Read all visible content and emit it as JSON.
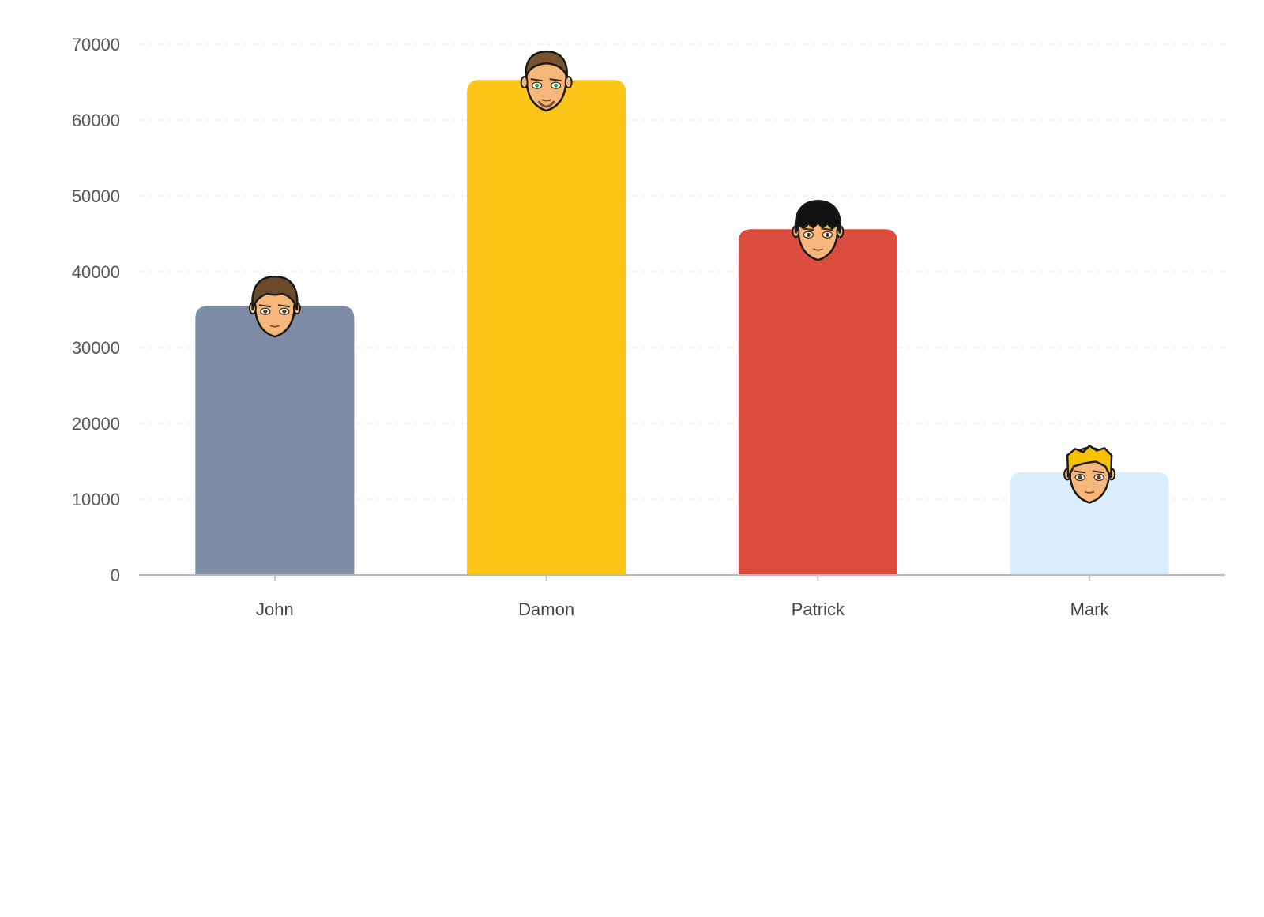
{
  "chart_data": {
    "type": "bar",
    "title": "",
    "xlabel": "",
    "ylabel": "",
    "categories": [
      "John",
      "Damon",
      "Patrick",
      "Mark"
    ],
    "values": [
      35500,
      65300,
      45600,
      13600
    ],
    "colors": [
      "#7f8ca8",
      "#fdc518",
      "#dd4d3f",
      "#daeefb"
    ],
    "avatars": [
      "avatar-brown-hair-icon",
      "avatar-bearded-icon",
      "avatar-black-hair-icon",
      "avatar-blond-hair-icon"
    ],
    "ylim": [
      0,
      70000
    ],
    "yticks": [
      0,
      10000,
      20000,
      30000,
      40000,
      50000,
      60000,
      70000
    ],
    "grid": true,
    "legend": "none"
  }
}
